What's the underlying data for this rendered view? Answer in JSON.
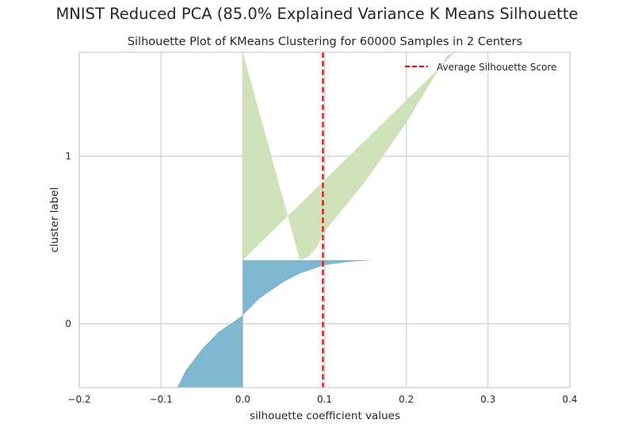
{
  "suptitle": "MNIST Reduced PCA (85.0% Explained Variance K Means Silhouette",
  "colors": {
    "cluster_0": "#7eb7cf",
    "cluster_1": "#cfe1b8",
    "average_line": "#ff0000",
    "grid": "#cccccc"
  },
  "chart_data": {
    "type": "area",
    "title": "Silhouette Plot of KMeans Clustering for 60000 Samples in 2 Centers",
    "xlabel": "silhouette coefficient values",
    "ylabel": "cluster label",
    "xlim": [
      -0.2,
      0.4
    ],
    "ylim": [
      -0.38,
      1.62
    ],
    "x_ticks": [
      -0.2,
      -0.1,
      0.0,
      0.1,
      0.2,
      0.3,
      0.4
    ],
    "x_tick_labels": [
      "−0.2",
      "−0.1",
      "0.0",
      "0.1",
      "0.2",
      "0.3",
      "0.4"
    ],
    "y_ticks": [
      0,
      1
    ],
    "y_tick_labels": [
      "0",
      "1"
    ],
    "grid": true,
    "legend_position": "top-right",
    "legend": [
      "Average Silhouette Score"
    ],
    "average_silhouette_score": 0.098,
    "series": [
      {
        "name": "0",
        "y_range": [
          -0.38,
          0.38
        ],
        "profile": [
          [
            0.16,
            0.38
          ],
          [
            0.13,
            0.37
          ],
          [
            0.1,
            0.35
          ],
          [
            0.07,
            0.3
          ],
          [
            0.05,
            0.25
          ],
          [
            0.02,
            0.15
          ],
          [
            0.0,
            0.05
          ],
          [
            -0.03,
            -0.05
          ],
          [
            -0.05,
            -0.15
          ],
          [
            -0.07,
            -0.28
          ],
          [
            -0.08,
            -0.38
          ]
        ]
      },
      {
        "name": "1",
        "y_range": [
          0.38,
          1.62
        ],
        "profile": [
          [
            0.07,
            0.38
          ],
          [
            0.08,
            0.4
          ],
          [
            0.09,
            0.45
          ],
          [
            0.1,
            0.55
          ],
          [
            0.15,
            0.85
          ],
          [
            0.2,
            1.2
          ],
          [
            0.25,
            1.6
          ],
          [
            0.26,
            1.62
          ]
        ]
      }
    ]
  }
}
